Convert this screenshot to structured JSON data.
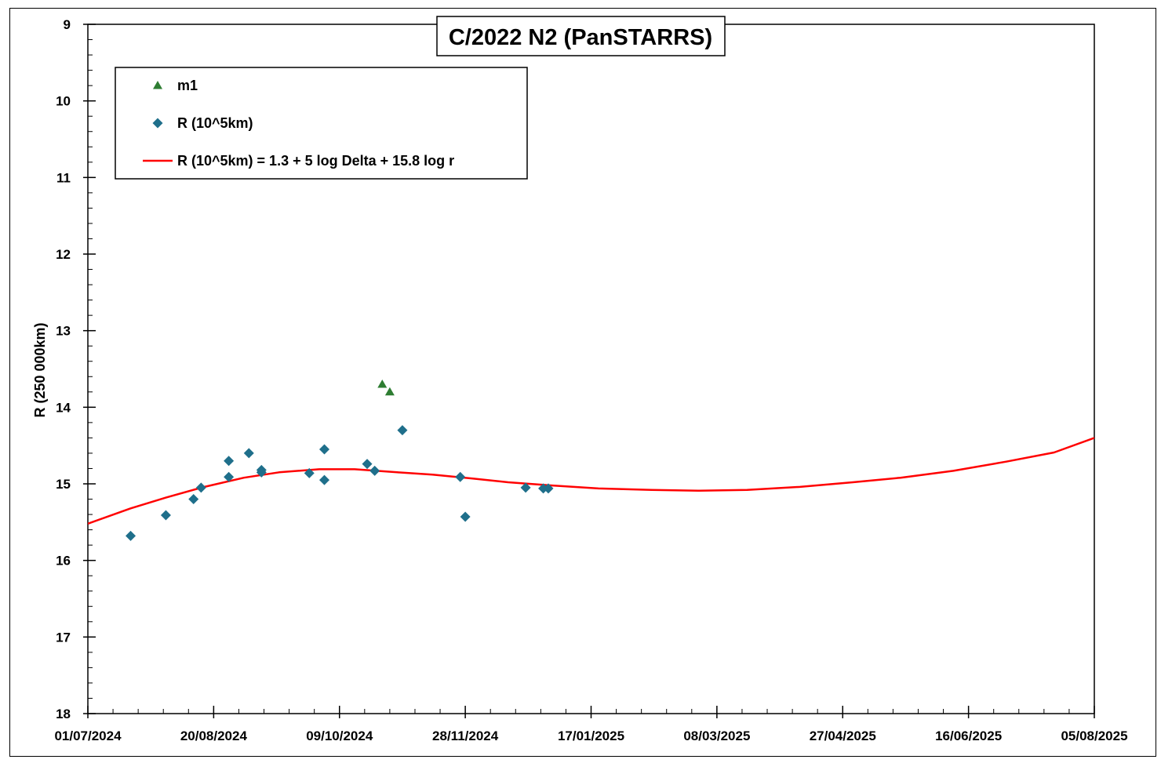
{
  "chart_data": {
    "type": "scatter",
    "title": "C/2022 N2 (PanSTARRS)",
    "xlabel": "",
    "ylabel": "R (250 000km)",
    "x_axis": {
      "kind": "date",
      "range": [
        "2024-07-01",
        "2025-08-05"
      ],
      "tick_labels": [
        "01/07/2024",
        "20/08/2024",
        "09/10/2024",
        "28/11/2024",
        "17/01/2025",
        "08/03/2025",
        "27/04/2025",
        "16/06/2025",
        "05/08/2025"
      ],
      "tick_values": [
        "2024-07-01",
        "2024-08-20",
        "2024-10-09",
        "2024-11-28",
        "2025-01-17",
        "2025-03-08",
        "2025-04-27",
        "2025-06-16",
        "2025-08-05"
      ],
      "minor_tick_interval_days": 10
    },
    "y_axis": {
      "range": [
        18,
        9
      ],
      "inverted": true,
      "tick_labels": [
        "9",
        "10",
        "11",
        "12",
        "13",
        "14",
        "15",
        "16",
        "17",
        "18"
      ],
      "tick_values": [
        9,
        10,
        11,
        12,
        13,
        14,
        15,
        16,
        17,
        18
      ],
      "minor_tick_interval": 0.2
    },
    "grid": false,
    "legend_position": "top-left",
    "series": [
      {
        "name": "m1",
        "kind": "scatter",
        "marker": "triangle",
        "color": "#2e7d32",
        "points": [
          {
            "x": "2024-10-26",
            "y": 13.7
          },
          {
            "x": "2024-10-29",
            "y": 13.8
          }
        ]
      },
      {
        "name": "R (10^5km)",
        "kind": "scatter",
        "marker": "diamond",
        "color": "#1f6f8b",
        "points": [
          {
            "x": "2024-07-18",
            "y": 15.68
          },
          {
            "x": "2024-08-01",
            "y": 15.41
          },
          {
            "x": "2024-08-12",
            "y": 15.2
          },
          {
            "x": "2024-08-15",
            "y": 15.05
          },
          {
            "x": "2024-08-26",
            "y": 14.7
          },
          {
            "x": "2024-08-26",
            "y": 14.91
          },
          {
            "x": "2024-09-03",
            "y": 14.6
          },
          {
            "x": "2024-09-08",
            "y": 14.82
          },
          {
            "x": "2024-09-08",
            "y": 14.85
          },
          {
            "x": "2024-09-27",
            "y": 14.86
          },
          {
            "x": "2024-10-03",
            "y": 14.55
          },
          {
            "x": "2024-10-03",
            "y": 14.95
          },
          {
            "x": "2024-10-20",
            "y": 14.74
          },
          {
            "x": "2024-10-23",
            "y": 14.83
          },
          {
            "x": "2024-11-03",
            "y": 14.3
          },
          {
            "x": "2024-11-26",
            "y": 14.91
          },
          {
            "x": "2024-11-28",
            "y": 15.43
          },
          {
            "x": "2024-12-22",
            "y": 15.05
          },
          {
            "x": "2024-12-29",
            "y": 15.06
          },
          {
            "x": "2024-12-31",
            "y": 15.06
          }
        ]
      },
      {
        "name": "R (10^5km) = 1.3 + 5 log Delta + 15.8 log r",
        "kind": "line",
        "color": "#ff0000",
        "points": [
          {
            "x": "2024-07-01",
            "y": 15.52
          },
          {
            "x": "2024-07-18",
            "y": 15.32
          },
          {
            "x": "2024-08-01",
            "y": 15.18
          },
          {
            "x": "2024-08-15",
            "y": 15.05
          },
          {
            "x": "2024-09-01",
            "y": 14.92
          },
          {
            "x": "2024-09-15",
            "y": 14.85
          },
          {
            "x": "2024-10-01",
            "y": 14.81
          },
          {
            "x": "2024-10-15",
            "y": 14.81
          },
          {
            "x": "2024-11-01",
            "y": 14.85
          },
          {
            "x": "2024-11-15",
            "y": 14.88
          },
          {
            "x": "2024-12-01",
            "y": 14.93
          },
          {
            "x": "2024-12-15",
            "y": 14.98
          },
          {
            "x": "2025-01-01",
            "y": 15.02
          },
          {
            "x": "2025-01-20",
            "y": 15.06
          },
          {
            "x": "2025-02-10",
            "y": 15.08
          },
          {
            "x": "2025-03-01",
            "y": 15.09
          },
          {
            "x": "2025-03-20",
            "y": 15.08
          },
          {
            "x": "2025-04-10",
            "y": 15.04
          },
          {
            "x": "2025-05-01",
            "y": 14.98
          },
          {
            "x": "2025-05-20",
            "y": 14.92
          },
          {
            "x": "2025-06-10",
            "y": 14.83
          },
          {
            "x": "2025-07-01",
            "y": 14.71
          },
          {
            "x": "2025-07-20",
            "y": 14.59
          },
          {
            "x": "2025-08-05",
            "y": 14.4
          }
        ]
      }
    ]
  }
}
